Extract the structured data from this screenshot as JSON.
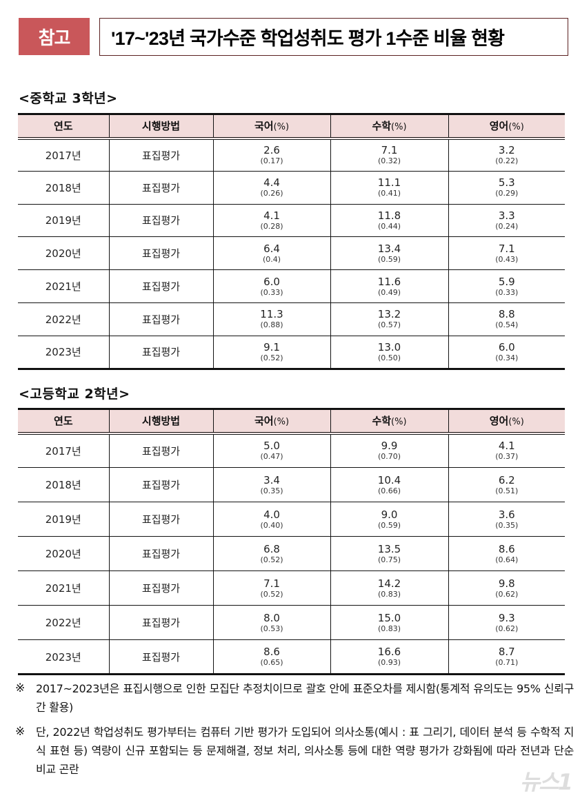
{
  "header": {
    "badge": "참고",
    "title": "'17~'23년 국가수준 학업성취도 평가 1수준 비율 현황"
  },
  "columns": {
    "year": "연도",
    "method": "시행방법",
    "korean": "국어",
    "math": "수학",
    "english": "영어",
    "unit": "(%)"
  },
  "middle_school": {
    "title": "<중학교 3학년>",
    "rows": [
      {
        "year": "2017년",
        "method": "표집평가",
        "korean": "2.6",
        "korean_se": "(0.17)",
        "math": "7.1",
        "math_se": "(0.32)",
        "english": "3.2",
        "english_se": "(0.22)"
      },
      {
        "year": "2018년",
        "method": "표집평가",
        "korean": "4.4",
        "korean_se": "(0.26)",
        "math": "11.1",
        "math_se": "(0.41)",
        "english": "5.3",
        "english_se": "(0.29)"
      },
      {
        "year": "2019년",
        "method": "표집평가",
        "korean": "4.1",
        "korean_se": "(0.28)",
        "math": "11.8",
        "math_se": "(0.44)",
        "english": "3.3",
        "english_se": "(0.24)"
      },
      {
        "year": "2020년",
        "method": "표집평가",
        "korean": "6.4",
        "korean_se": "(0.4)",
        "math": "13.4",
        "math_se": "(0.59)",
        "english": "7.1",
        "english_se": "(0.43)"
      },
      {
        "year": "2021년",
        "method": "표집평가",
        "korean": "6.0",
        "korean_se": "(0.33)",
        "math": "11.6",
        "math_se": "(0.49)",
        "english": "5.9",
        "english_se": "(0.33)"
      },
      {
        "year": "2022년",
        "method": "표집평가",
        "korean": "11.3",
        "korean_se": "(0.88)",
        "math": "13.2",
        "math_se": "(0.57)",
        "english": "8.8",
        "english_se": "(0.54)"
      },
      {
        "year": "2023년",
        "method": "표집평가",
        "korean": "9.1",
        "korean_se": "(0.52)",
        "math": "13.0",
        "math_se": "(0.50)",
        "english": "6.0",
        "english_se": "(0.34)"
      }
    ]
  },
  "high_school": {
    "title": "<고등학교 2학년>",
    "rows": [
      {
        "year": "2017년",
        "method": "표집평가",
        "korean": "5.0",
        "korean_se": "(0.47)",
        "math": "9.9",
        "math_se": "(0.70)",
        "english": "4.1",
        "english_se": "(0.37)"
      },
      {
        "year": "2018년",
        "method": "표집평가",
        "korean": "3.4",
        "korean_se": "(0.35)",
        "math": "10.4",
        "math_se": "(0.66)",
        "english": "6.2",
        "english_se": "(0.51)"
      },
      {
        "year": "2019년",
        "method": "표집평가",
        "korean": "4.0",
        "korean_se": "(0.40)",
        "math": "9.0",
        "math_se": "(0.59)",
        "english": "3.6",
        "english_se": "(0.35)"
      },
      {
        "year": "2020년",
        "method": "표집평가",
        "korean": "6.8",
        "korean_se": "(0.52)",
        "math": "13.5",
        "math_se": "(0.75)",
        "english": "8.6",
        "english_se": "(0.64)"
      },
      {
        "year": "2021년",
        "method": "표집평가",
        "korean": "7.1",
        "korean_se": "(0.52)",
        "math": "14.2",
        "math_se": "(0.83)",
        "english": "9.8",
        "english_se": "(0.62)"
      },
      {
        "year": "2022년",
        "method": "표집평가",
        "korean": "8.0",
        "korean_se": "(0.53)",
        "math": "15.0",
        "math_se": "(0.83)",
        "english": "9.3",
        "english_se": "(0.62)"
      },
      {
        "year": "2023년",
        "method": "표집평가",
        "korean": "8.6",
        "korean_se": "(0.65)",
        "math": "16.6",
        "math_se": "(0.93)",
        "english": "8.7",
        "english_se": "(0.71)"
      }
    ]
  },
  "notes": [
    {
      "mark": "※",
      "text": "2017~2023년은 표집시행으로 인한 모집단 추정치이므로 괄호 안에 표준오차를 제시함(통계적 유의도는 95% 신뢰구간 활용)"
    },
    {
      "mark": "※",
      "text": "단, 2022년 학업성취도 평가부터는 컴퓨터 기반 평가가 도입되어 의사소통(예시 : 표 그리기, 데이터 분석 등 수학적 지식 표현 등) 역량이 신규 포함되는 등 문제해결, 정보 처리, 의사소통 등에 대한 역량 평가가 강화됨에 따라 전년과 단순 비교 곤란"
    }
  ],
  "watermark": "뉴스1",
  "colors": {
    "badge_bg": "#c9575a",
    "header_row_bg": "#f2dcdb",
    "title_border": "#5a1f1f"
  }
}
